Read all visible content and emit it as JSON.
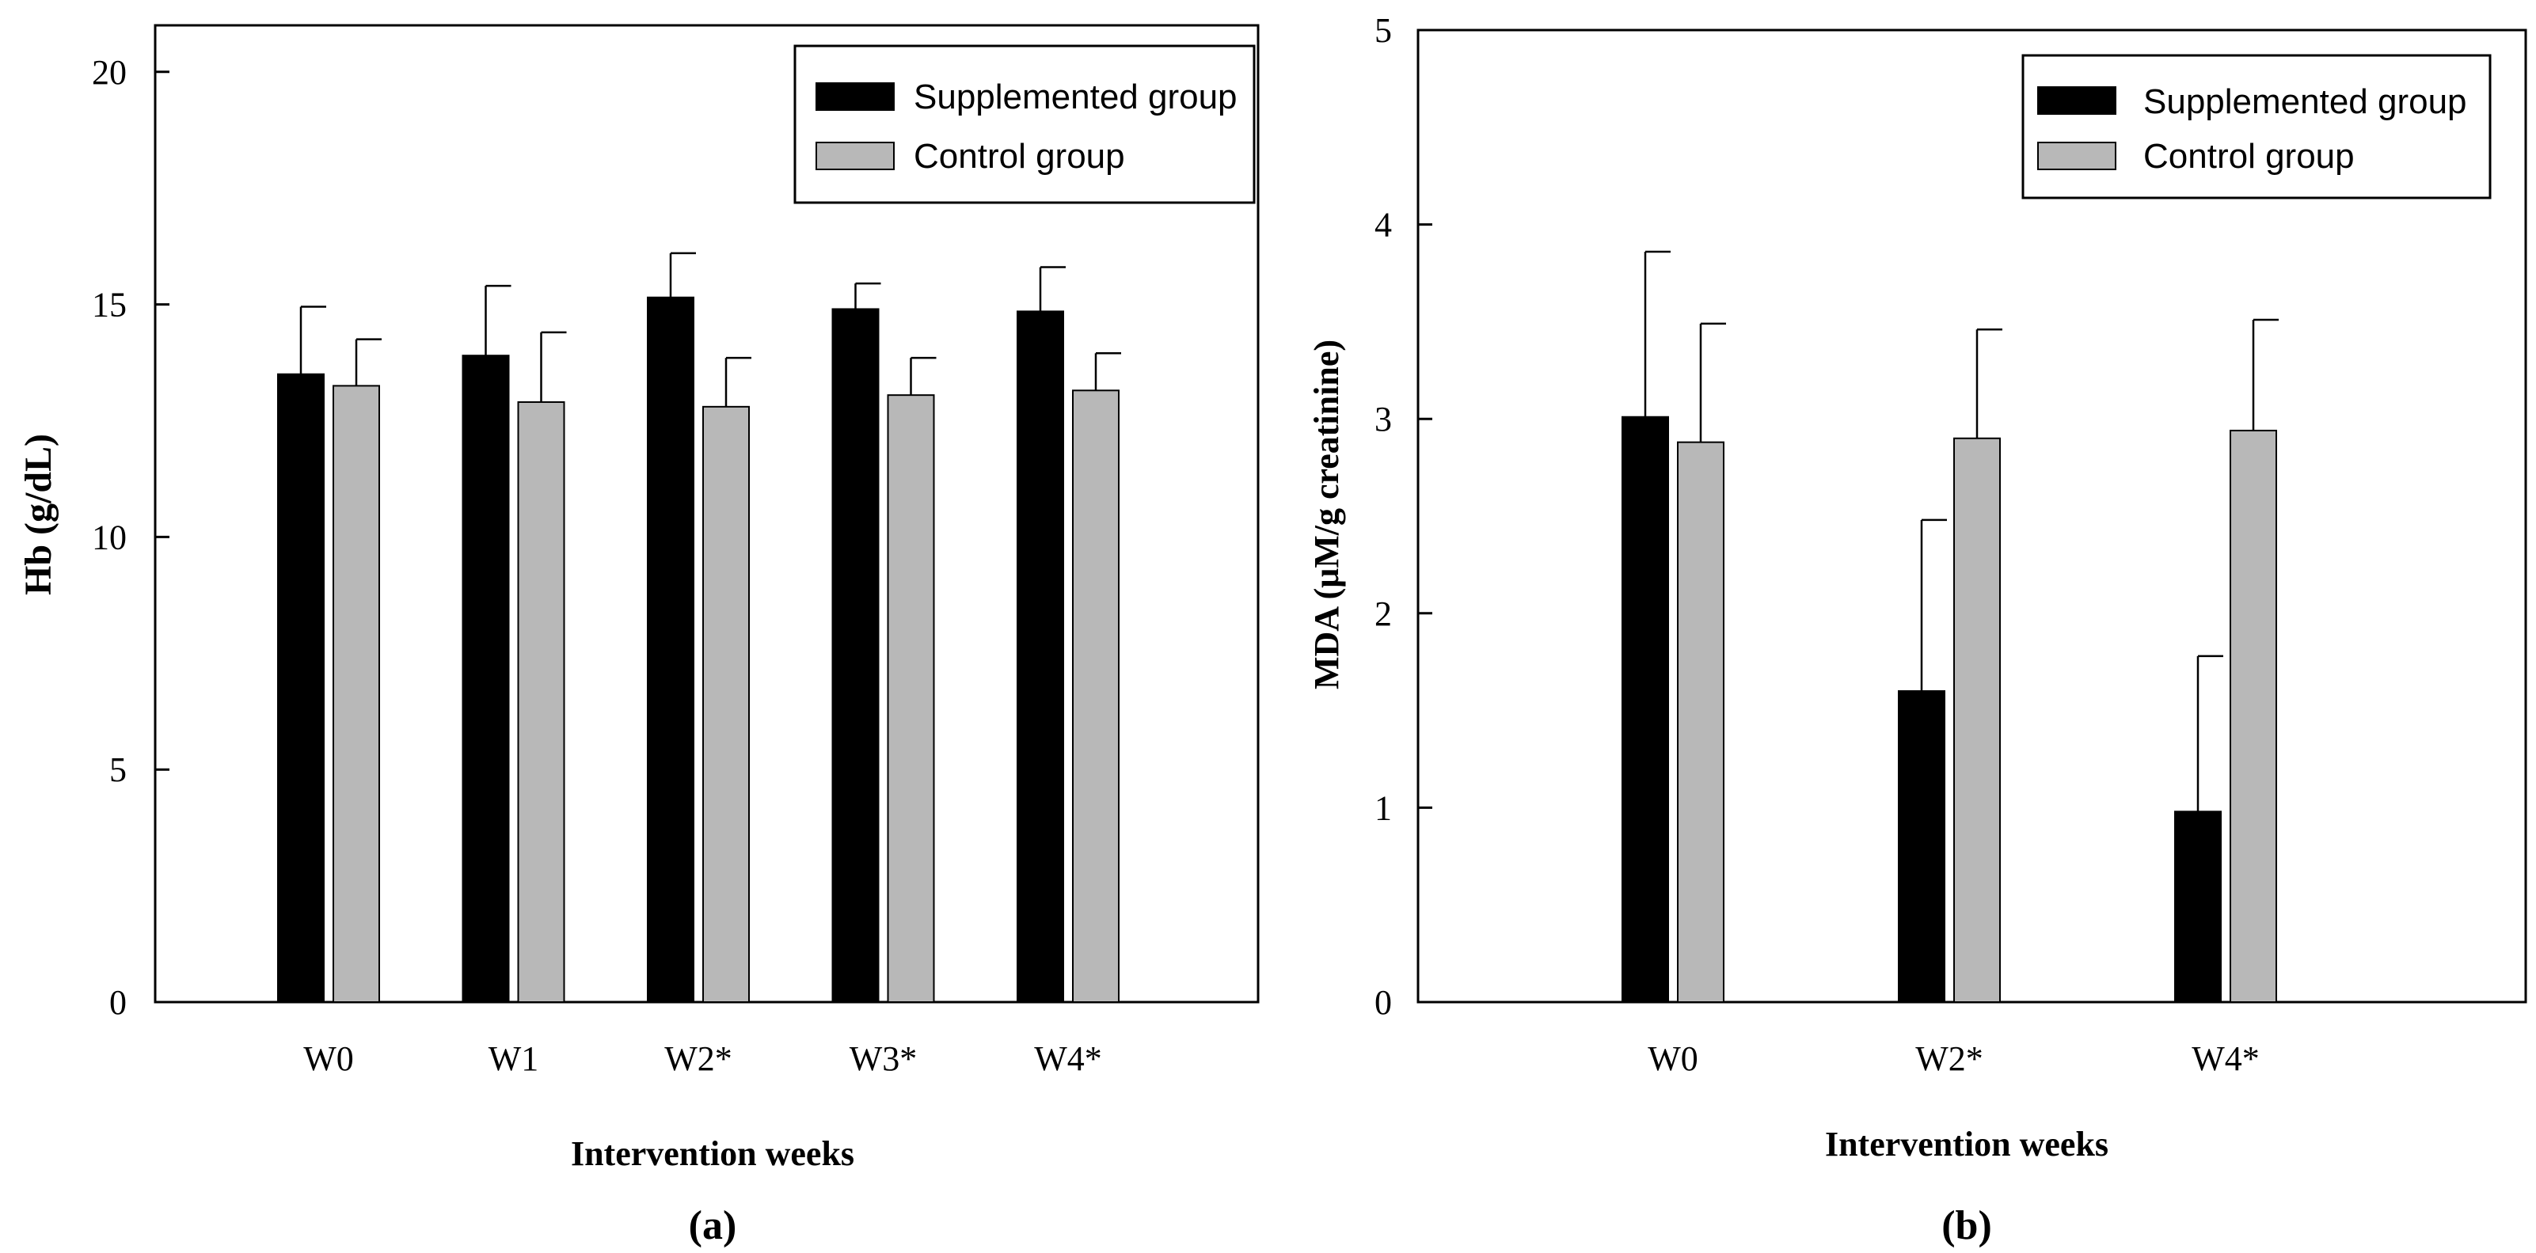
{
  "colors": {
    "supplemented": "#000000",
    "control": "#b8b8b8",
    "axis": "#000000",
    "background": "#ffffff"
  },
  "chart_data": [
    {
      "id": "a",
      "type": "bar",
      "panel_label": "(a)",
      "title": "",
      "xlabel": "Intervention weeks",
      "ylabel": "Hb (g/dL)",
      "ylim": [
        0,
        21
      ],
      "yticks": [
        0,
        5,
        10,
        15,
        20
      ],
      "ytick_labels": [
        "0",
        "5",
        "10",
        "15",
        "20"
      ],
      "grid": false,
      "legend_position": "top-right",
      "categories": [
        "W0",
        "W1",
        "W2*",
        "W3*",
        "W4*"
      ],
      "series": [
        {
          "name": "Supplemented group",
          "color": "#000000",
          "values": [
            13.5,
            13.9,
            15.15,
            14.9,
            14.85
          ],
          "errors": [
            1.45,
            1.5,
            0.95,
            0.55,
            0.95
          ]
        },
        {
          "name": "Control group",
          "color": "#b8b8b8",
          "values": [
            13.25,
            12.9,
            12.8,
            13.05,
            13.15
          ],
          "errors": [
            1.0,
            1.5,
            1.05,
            0.8,
            0.8
          ]
        }
      ]
    },
    {
      "id": "b",
      "type": "bar",
      "panel_label": "(b)",
      "title": "",
      "xlabel": "Intervention weeks",
      "ylabel": "MDA (μM/g creatinine)",
      "ylim": [
        0,
        5
      ],
      "yticks": [
        0,
        1,
        2,
        3,
        4,
        5
      ],
      "ytick_labels": [
        "0",
        "1",
        "2",
        "3",
        "4",
        "5"
      ],
      "grid": false,
      "legend_position": "top-right",
      "categories": [
        "W0",
        "W2*",
        "W4*"
      ],
      "series": [
        {
          "name": "Supplemented group",
          "color": "#000000",
          "values": [
            3.01,
            1.6,
            0.98
          ],
          "errors": [
            0.85,
            0.88,
            0.8
          ]
        },
        {
          "name": "Control group",
          "color": "#b8b8b8",
          "values": [
            2.88,
            2.9,
            2.94
          ],
          "errors": [
            0.61,
            0.56,
            0.57
          ]
        }
      ]
    }
  ]
}
